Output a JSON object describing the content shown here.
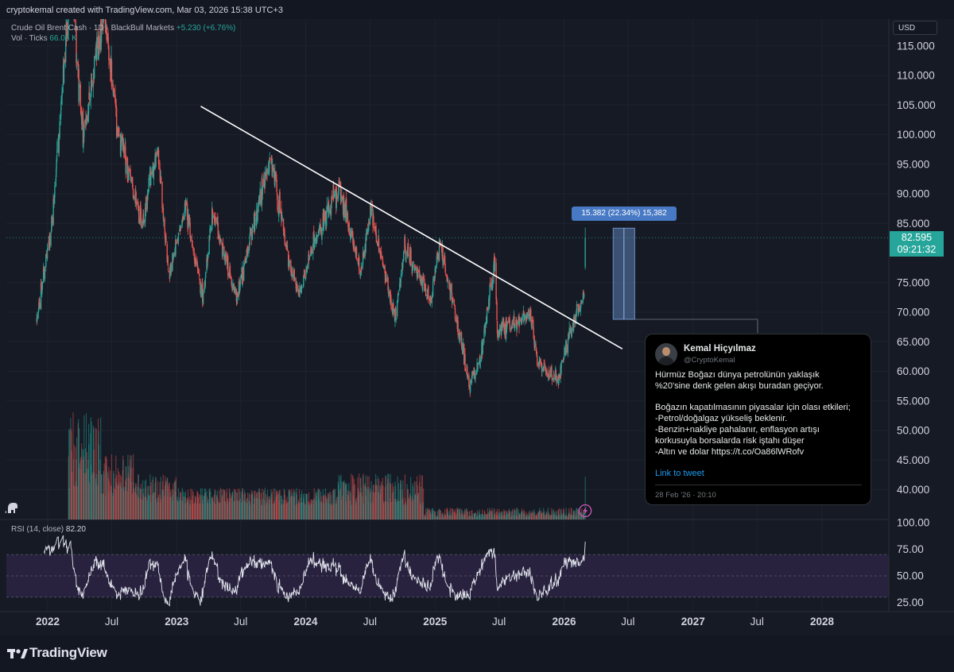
{
  "header": {
    "credit": "cryptokemal created with TradingView.com, Mar 03, 2026 15:38 UTC+3"
  },
  "legend": {
    "symbol": "Crude Oil Brent Cash · 1D · BlackBull Markets",
    "change": "+5.230 (+6.76%)",
    "vol_label": "Vol · Ticks",
    "vol_value": "66.06 K",
    "rsi_label": "RSI (14, close)",
    "rsi_value": "82.20"
  },
  "currency": "USD",
  "last_price": {
    "price": "82.595",
    "countdown": "09:21:32"
  },
  "measure_label": "15.382 (22.34%) 15,382",
  "colors": {
    "up": "#26a69a",
    "down": "#ef5350",
    "rsi_band": "#2a2443",
    "trendline": "#ffffff",
    "measure": "#5b7fb4"
  },
  "chart_data": {
    "type": "candlestick",
    "symbol": "Crude Oil Brent Cash",
    "timeframe": "1D",
    "price_axis": {
      "ticks": [
        "115.000",
        "110.000",
        "105.000",
        "100.000",
        "95.000",
        "90.000",
        "85.000",
        "75.000",
        "70.000",
        "65.000",
        "60.000",
        "55.000",
        "50.000",
        "45.000",
        "40.000"
      ],
      "range": [
        36.5,
        118.5
      ]
    },
    "rsi_axis": {
      "ticks": [
        "100.00",
        "75.00",
        "50.00",
        "25.00"
      ],
      "range": [
        25,
        100
      ],
      "band": [
        30,
        70
      ]
    },
    "time_axis": {
      "labels": [
        {
          "text": "2022",
          "date": "2022-01-01",
          "bold": true
        },
        {
          "text": "Jul",
          "date": "2022-07-01",
          "bold": false
        },
        {
          "text": "2023",
          "date": "2023-01-01",
          "bold": true
        },
        {
          "text": "Jul",
          "date": "2023-07-01",
          "bold": false
        },
        {
          "text": "2024",
          "date": "2024-01-01",
          "bold": true
        },
        {
          "text": "Jul",
          "date": "2024-07-01",
          "bold": false
        },
        {
          "text": "2025",
          "date": "2025-01-01",
          "bold": true
        },
        {
          "text": "Jul",
          "date": "2025-07-01",
          "bold": false
        },
        {
          "text": "2026",
          "date": "2026-01-01",
          "bold": true
        },
        {
          "text": "Jul",
          "date": "2026-07-01",
          "bold": false
        },
        {
          "text": "2027",
          "date": "2027-01-01",
          "bold": true
        },
        {
          "text": "Jul",
          "date": "2027-07-01",
          "bold": false
        },
        {
          "text": "2028",
          "date": "2028-01-01",
          "bold": true
        }
      ]
    },
    "price_path": [
      [
        "2021-12-01",
        69
      ],
      [
        "2022-01-15",
        86
      ],
      [
        "2022-03-08",
        128
      ],
      [
        "2022-04-10",
        99
      ],
      [
        "2022-06-10",
        122
      ],
      [
        "2022-07-20",
        100
      ],
      [
        "2022-09-25",
        85
      ],
      [
        "2022-11-07",
        98
      ],
      [
        "2022-12-10",
        76
      ],
      [
        "2023-01-25",
        88
      ],
      [
        "2023-03-17",
        72
      ],
      [
        "2023-04-12",
        87
      ],
      [
        "2023-06-20",
        72
      ],
      [
        "2023-08-10",
        86
      ],
      [
        "2023-09-27",
        96
      ],
      [
        "2023-11-16",
        78
      ],
      [
        "2023-12-13",
        73
      ],
      [
        "2024-01-25",
        82
      ],
      [
        "2024-04-05",
        91
      ],
      [
        "2024-06-04",
        77
      ],
      [
        "2024-07-04",
        87
      ],
      [
        "2024-09-10",
        69
      ],
      [
        "2024-10-07",
        81
      ],
      [
        "2024-12-20",
        72
      ],
      [
        "2025-01-15",
        82
      ],
      [
        "2025-04-08",
        58
      ],
      [
        "2025-05-05",
        61
      ],
      [
        "2025-06-20",
        79
      ],
      [
        "2025-06-26",
        67
      ],
      [
        "2025-08-05",
        68
      ],
      [
        "2025-09-25",
        70
      ],
      [
        "2025-10-20",
        61
      ],
      [
        "2025-12-16",
        59
      ],
      [
        "2026-01-25",
        68
      ],
      [
        "2026-02-20",
        72
      ],
      [
        "2026-02-27",
        73
      ],
      [
        "2026-03-02",
        82.6
      ]
    ],
    "trendline": [
      [
        "2023-03-10",
        104.8
      ],
      [
        "2026-06-15",
        63.8
      ]
    ],
    "measure_box": {
      "from": "2026-05-20",
      "to": "2026-07-20",
      "low": 68.8,
      "high": 84.2,
      "value": 15.382,
      "percent": 22.34
    },
    "last_price": 82.595,
    "rsi_last": 82.2,
    "volume_last": "66.06 K"
  },
  "tweet": {
    "name": "Kemal Hiçyılmaz",
    "handle": "@CryptoKemal",
    "lines": [
      "Hürmüz Boğazı dünya petrolünün yaklaşık",
      "%20'sine denk gelen akışı buradan geçiyor.",
      "",
      "Boğazın kapatılmasının piyasalar için olası etkileri;",
      "-Petrol/doğalgaz yükseliş beklenir.",
      "-Benzin+nakliye pahalanır, enflasyon artışı",
      "korkusuyla borsalarda risk iştahı düşer",
      "-Altın ve dolar https://t.co/Oa86lWRofv"
    ],
    "link_text": "Link to tweet",
    "date": "28 Feb '26 · 20:10"
  },
  "brand": {
    "name": "TradingView"
  },
  "icons": {
    "dino": "dino-icon",
    "lightning": "lightning-icon",
    "logo": "tradingview-logo-icon"
  }
}
